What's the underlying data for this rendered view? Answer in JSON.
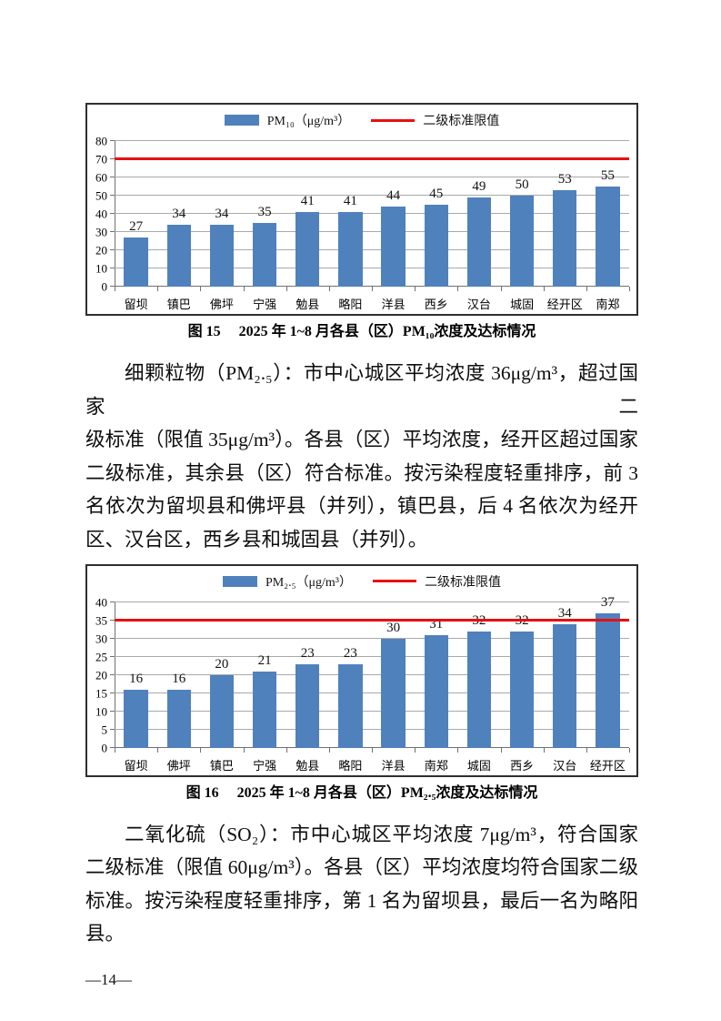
{
  "page": {
    "number_label": "—14—"
  },
  "chart_data": [
    {
      "type": "bar",
      "series_label": "PM₁₀（μg/m³）",
      "limit_label": "二级标准限值",
      "categories": [
        "留坝",
        "镇巴",
        "佛坪",
        "宁强",
        "勉县",
        "略阳",
        "洋县",
        "西乡",
        "汉台",
        "城固",
        "经开区",
        "南郑"
      ],
      "values": [
        27,
        34,
        34,
        35,
        41,
        41,
        44,
        45,
        49,
        50,
        53,
        55
      ],
      "limit_value": 70,
      "ylim": [
        0,
        80
      ],
      "ystep": 10,
      "bar_color": "#4f81bd",
      "limit_color": "#e81010",
      "grid": true,
      "legend_position": "top",
      "caption_prefix": "图 15",
      "caption_text": "2025 年 1~8 月各县（区）PM₁₀浓度及达标情况"
    },
    {
      "type": "bar",
      "series_label": "PM₂.₅（μg/m³）",
      "limit_label": "二级标准限值",
      "categories": [
        "留坝",
        "佛坪",
        "镇巴",
        "宁强",
        "勉县",
        "略阳",
        "洋县",
        "南郑",
        "城固",
        "西乡",
        "汉台",
        "经开区"
      ],
      "values": [
        16,
        16,
        20,
        21,
        23,
        23,
        30,
        31,
        32,
        32,
        34,
        37
      ],
      "limit_value": 35,
      "ylim": [
        0,
        40
      ],
      "ystep": 5,
      "bar_color": "#4f81bd",
      "limit_color": "#e81010",
      "grid": true,
      "legend_position": "top",
      "caption_prefix": "图 16",
      "caption_text": "2025 年 1~8 月各县（区）PM₂.₅浓度及达标情况"
    }
  ],
  "paragraphs": [
    {
      "lines": [
        "细颗粒物（PM₂.₅）：市中心城区平均浓度 36μg/m³，超过国家二",
        "级标准（限值 35μg/m³）。各县（区）平均浓度，经开区超过国家",
        "二级标准，其余县（区）符合标准。按污染程度轻重排序，前 3",
        "名依次为留坝县和佛坪县（并列），镇巴县，后 4 名依次为经开",
        "区、汉台区，西乡县和城固县（并列）。"
      ]
    },
    {
      "lines": [
        "二氧化硫（SO₂）：市中心城区平均浓度 7μg/m³，符合国家",
        "二级标准（限值 60μg/m³）。各县（区）平均浓度均符合国家二级",
        "标准。按污染程度轻重排序，第 1 名为留坝县，最后一名为略阳",
        "县。"
      ]
    }
  ]
}
